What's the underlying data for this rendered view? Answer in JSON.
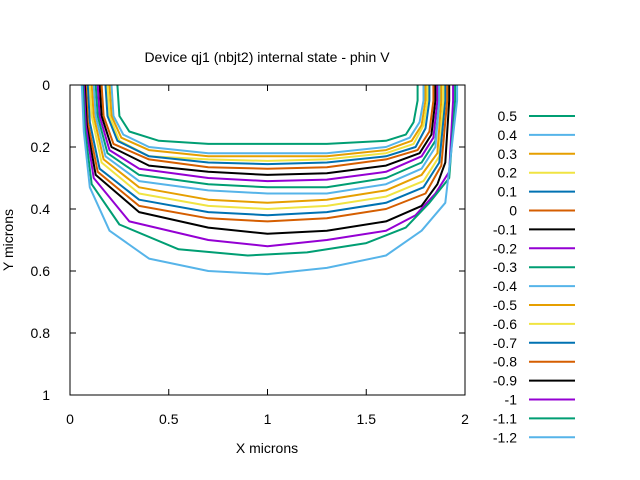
{
  "chart_data": {
    "type": "line",
    "title": "Device qj1 (nbjt2) internal state - phin V",
    "xlabel": "X microns",
    "ylabel": "Y microns",
    "xlim": [
      0,
      2
    ],
    "ylim": [
      1,
      0
    ],
    "y_axis_inverted": true,
    "grid": false,
    "legend_position": "right",
    "x_ticks": [
      {
        "value": 0,
        "label": "0"
      },
      {
        "value": 0.5,
        "label": "0.5"
      },
      {
        "value": 1,
        "label": "1"
      },
      {
        "value": 1.5,
        "label": "1.5"
      },
      {
        "value": 2,
        "label": "2"
      }
    ],
    "y_ticks": [
      {
        "value": 0,
        "label": "0"
      },
      {
        "value": 0.2,
        "label": "0.2"
      },
      {
        "value": 0.4,
        "label": "0.4"
      },
      {
        "value": 0.6,
        "label": "0.6"
      },
      {
        "value": 0.8,
        "label": "0.8"
      },
      {
        "value": 1,
        "label": "1"
      }
    ],
    "series": [
      {
        "name": "0.5",
        "color": "#009e73",
        "points": [
          [
            0.24,
            0
          ],
          [
            0.25,
            0.1
          ],
          [
            0.3,
            0.15
          ],
          [
            0.45,
            0.18
          ],
          [
            0.7,
            0.19
          ],
          [
            1.0,
            0.19
          ],
          [
            1.3,
            0.19
          ],
          [
            1.6,
            0.18
          ],
          [
            1.7,
            0.16
          ],
          [
            1.74,
            0.12
          ],
          [
            1.76,
            0.05
          ],
          [
            1.76,
            0
          ]
        ]
      },
      {
        "name": "0.4",
        "color": "#56b4e9",
        "points": [
          [
            0.21,
            0
          ],
          [
            0.22,
            0.1
          ],
          [
            0.27,
            0.16
          ],
          [
            0.4,
            0.2
          ],
          [
            0.7,
            0.22
          ],
          [
            1.0,
            0.22
          ],
          [
            1.3,
            0.22
          ],
          [
            1.6,
            0.2
          ],
          [
            1.72,
            0.17
          ],
          [
            1.77,
            0.12
          ],
          [
            1.79,
            0.05
          ],
          [
            1.79,
            0
          ]
        ]
      },
      {
        "name": "0.3",
        "color": "#e69f00",
        "points": [
          [
            0.2,
            0
          ],
          [
            0.21,
            0.1
          ],
          [
            0.26,
            0.17
          ],
          [
            0.4,
            0.21
          ],
          [
            0.7,
            0.23
          ],
          [
            1.0,
            0.23
          ],
          [
            1.3,
            0.23
          ],
          [
            1.6,
            0.21
          ],
          [
            1.73,
            0.18
          ],
          [
            1.78,
            0.13
          ],
          [
            1.8,
            0.05
          ],
          [
            1.8,
            0
          ]
        ]
      },
      {
        "name": "0.2",
        "color": "#f0e442",
        "points": [
          [
            0.19,
            0
          ],
          [
            0.2,
            0.1
          ],
          [
            0.25,
            0.18
          ],
          [
            0.4,
            0.23
          ],
          [
            0.7,
            0.24
          ],
          [
            1.0,
            0.245
          ],
          [
            1.3,
            0.24
          ],
          [
            1.6,
            0.22
          ],
          [
            1.74,
            0.19
          ],
          [
            1.79,
            0.13
          ],
          [
            1.81,
            0.05
          ],
          [
            1.81,
            0
          ]
        ]
      },
      {
        "name": "0.1",
        "color": "#0072b2",
        "points": [
          [
            0.18,
            0
          ],
          [
            0.19,
            0.1
          ],
          [
            0.24,
            0.18
          ],
          [
            0.4,
            0.23
          ],
          [
            0.7,
            0.25
          ],
          [
            1.0,
            0.255
          ],
          [
            1.3,
            0.25
          ],
          [
            1.6,
            0.23
          ],
          [
            1.75,
            0.2
          ],
          [
            1.8,
            0.14
          ],
          [
            1.82,
            0.05
          ],
          [
            1.82,
            0
          ]
        ]
      },
      {
        "name": "0",
        "color": "#d55e00",
        "points": [
          [
            0.16,
            0
          ],
          [
            0.17,
            0.1
          ],
          [
            0.22,
            0.19
          ],
          [
            0.4,
            0.24
          ],
          [
            0.7,
            0.265
          ],
          [
            1.0,
            0.27
          ],
          [
            1.3,
            0.265
          ],
          [
            1.6,
            0.24
          ],
          [
            1.76,
            0.21
          ],
          [
            1.82,
            0.15
          ],
          [
            1.84,
            0.05
          ],
          [
            1.84,
            0
          ]
        ]
      },
      {
        "name": "-0.1",
        "color": "#000000",
        "points": [
          [
            0.15,
            0
          ],
          [
            0.16,
            0.1
          ],
          [
            0.21,
            0.2
          ],
          [
            0.4,
            0.26
          ],
          [
            0.7,
            0.28
          ],
          [
            1.0,
            0.29
          ],
          [
            1.3,
            0.285
          ],
          [
            1.6,
            0.26
          ],
          [
            1.77,
            0.22
          ],
          [
            1.83,
            0.16
          ],
          [
            1.85,
            0.05
          ],
          [
            1.85,
            0
          ]
        ]
      },
      {
        "name": "-0.2",
        "color": "#9400d3",
        "points": [
          [
            0.14,
            0
          ],
          [
            0.15,
            0.1
          ],
          [
            0.2,
            0.21
          ],
          [
            0.35,
            0.27
          ],
          [
            0.7,
            0.3
          ],
          [
            1.0,
            0.31
          ],
          [
            1.3,
            0.305
          ],
          [
            1.6,
            0.28
          ],
          [
            1.78,
            0.23
          ],
          [
            1.84,
            0.17
          ],
          [
            1.86,
            0.05
          ],
          [
            1.86,
            0
          ]
        ]
      },
      {
        "name": "-0.3",
        "color": "#009e73",
        "points": [
          [
            0.13,
            0
          ],
          [
            0.14,
            0.1
          ],
          [
            0.19,
            0.22
          ],
          [
            0.35,
            0.29
          ],
          [
            0.7,
            0.32
          ],
          [
            1.0,
            0.33
          ],
          [
            1.3,
            0.33
          ],
          [
            1.6,
            0.3
          ],
          [
            1.78,
            0.25
          ],
          [
            1.85,
            0.18
          ],
          [
            1.87,
            0.05
          ],
          [
            1.87,
            0
          ]
        ]
      },
      {
        "name": "-0.4",
        "color": "#56b4e9",
        "points": [
          [
            0.12,
            0
          ],
          [
            0.13,
            0.1
          ],
          [
            0.18,
            0.23
          ],
          [
            0.35,
            0.31
          ],
          [
            0.7,
            0.34
          ],
          [
            1.0,
            0.35
          ],
          [
            1.3,
            0.35
          ],
          [
            1.6,
            0.32
          ],
          [
            1.78,
            0.27
          ],
          [
            1.85,
            0.2
          ],
          [
            1.87,
            0.05
          ],
          [
            1.87,
            0
          ]
        ]
      },
      {
        "name": "-0.5",
        "color": "#e69f00",
        "points": [
          [
            0.11,
            0
          ],
          [
            0.12,
            0.1
          ],
          [
            0.17,
            0.24
          ],
          [
            0.35,
            0.33
          ],
          [
            0.7,
            0.37
          ],
          [
            1.0,
            0.38
          ],
          [
            1.3,
            0.37
          ],
          [
            1.6,
            0.34
          ],
          [
            1.78,
            0.29
          ],
          [
            1.86,
            0.22
          ],
          [
            1.88,
            0.05
          ],
          [
            1.88,
            0
          ]
        ]
      },
      {
        "name": "-0.6",
        "color": "#f0e442",
        "points": [
          [
            0.1,
            0
          ],
          [
            0.11,
            0.1
          ],
          [
            0.16,
            0.25
          ],
          [
            0.35,
            0.35
          ],
          [
            0.7,
            0.39
          ],
          [
            1.0,
            0.4
          ],
          [
            1.3,
            0.39
          ],
          [
            1.6,
            0.36
          ],
          [
            1.79,
            0.31
          ],
          [
            1.87,
            0.23
          ],
          [
            1.89,
            0.05
          ],
          [
            1.89,
            0
          ]
        ]
      },
      {
        "name": "-0.7",
        "color": "#0072b2",
        "points": [
          [
            0.09,
            0
          ],
          [
            0.1,
            0.12
          ],
          [
            0.15,
            0.27
          ],
          [
            0.35,
            0.37
          ],
          [
            0.7,
            0.41
          ],
          [
            1.0,
            0.42
          ],
          [
            1.3,
            0.41
          ],
          [
            1.6,
            0.38
          ],
          [
            1.79,
            0.33
          ],
          [
            1.87,
            0.25
          ],
          [
            1.9,
            0.05
          ],
          [
            1.9,
            0
          ]
        ]
      },
      {
        "name": "-0.8",
        "color": "#d55e00",
        "points": [
          [
            0.08,
            0
          ],
          [
            0.09,
            0.12
          ],
          [
            0.14,
            0.28
          ],
          [
            0.35,
            0.39
          ],
          [
            0.7,
            0.43
          ],
          [
            1.0,
            0.44
          ],
          [
            1.3,
            0.43
          ],
          [
            1.6,
            0.4
          ],
          [
            1.8,
            0.35
          ],
          [
            1.88,
            0.26
          ],
          [
            1.91,
            0.05
          ],
          [
            1.91,
            0
          ]
        ]
      },
      {
        "name": "-0.9",
        "color": "#000000",
        "points": [
          [
            0.075,
            0
          ],
          [
            0.085,
            0.13
          ],
          [
            0.13,
            0.29
          ],
          [
            0.35,
            0.41
          ],
          [
            0.7,
            0.46
          ],
          [
            1.0,
            0.48
          ],
          [
            1.3,
            0.47
          ],
          [
            1.6,
            0.44
          ],
          [
            1.78,
            0.39
          ],
          [
            1.86,
            0.32
          ],
          [
            1.9,
            0.25
          ],
          [
            1.92,
            0.05
          ],
          [
            1.92,
            0
          ]
        ]
      },
      {
        "name": "-1",
        "color": "#9400d3",
        "points": [
          [
            0.07,
            0
          ],
          [
            0.08,
            0.13
          ],
          [
            0.12,
            0.3
          ],
          [
            0.3,
            0.44
          ],
          [
            0.7,
            0.5
          ],
          [
            1.0,
            0.52
          ],
          [
            1.3,
            0.5
          ],
          [
            1.6,
            0.47
          ],
          [
            1.75,
            0.42
          ],
          [
            1.85,
            0.35
          ],
          [
            1.92,
            0.28
          ],
          [
            1.94,
            0.05
          ],
          [
            1.94,
            0
          ]
        ]
      },
      {
        "name": "-1.1",
        "color": "#009e73",
        "points": [
          [
            0.065,
            0
          ],
          [
            0.075,
            0.14
          ],
          [
            0.11,
            0.32
          ],
          [
            0.25,
            0.45
          ],
          [
            0.55,
            0.53
          ],
          [
            0.9,
            0.55
          ],
          [
            1.2,
            0.54
          ],
          [
            1.5,
            0.51
          ],
          [
            1.7,
            0.46
          ],
          [
            1.82,
            0.38
          ],
          [
            1.92,
            0.3
          ],
          [
            1.95,
            0.05
          ],
          [
            1.95,
            0
          ]
        ]
      },
      {
        "name": "-1.2",
        "color": "#56b4e9",
        "points": [
          [
            0.06,
            0
          ],
          [
            0.07,
            0.15
          ],
          [
            0.1,
            0.33
          ],
          [
            0.2,
            0.47
          ],
          [
            0.4,
            0.56
          ],
          [
            0.7,
            0.6
          ],
          [
            1.0,
            0.61
          ],
          [
            1.3,
            0.59
          ],
          [
            1.6,
            0.55
          ],
          [
            1.78,
            0.47
          ],
          [
            1.9,
            0.38
          ],
          [
            1.96,
            0.05
          ],
          [
            1.96,
            0
          ]
        ]
      }
    ]
  }
}
